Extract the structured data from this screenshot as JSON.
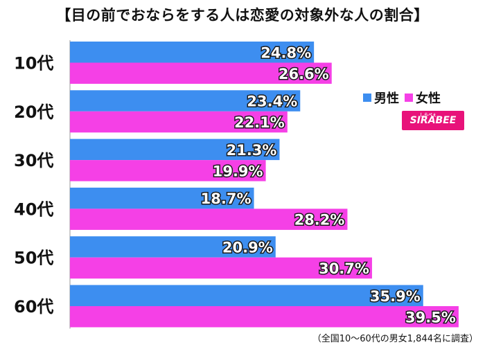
{
  "title": "【目の前でおならをする人は恋愛の対象外な人の割合】",
  "note": "（全国10〜60代の男女1,844名に調査）",
  "legend": {
    "male": "男性",
    "female": "女性",
    "symbol": "■"
  },
  "logo": {
    "text": "SIRABEE",
    "tagline": "しらべぇ"
  },
  "colors": {
    "male": "#3d8ef0",
    "female": "#f540e6"
  },
  "chart_data": {
    "type": "bar",
    "orientation": "horizontal",
    "categories": [
      "10代",
      "20代",
      "30代",
      "40代",
      "50代",
      "60代"
    ],
    "series": [
      {
        "name": "男性",
        "values": [
          24.8,
          23.4,
          21.3,
          18.7,
          20.9,
          35.9
        ]
      },
      {
        "name": "女性",
        "values": [
          26.6,
          22.1,
          19.9,
          28.2,
          30.7,
          39.5
        ]
      }
    ],
    "value_suffix": "%",
    "xlim": [
      0,
      40
    ],
    "grid": false,
    "legend_position": "right"
  }
}
